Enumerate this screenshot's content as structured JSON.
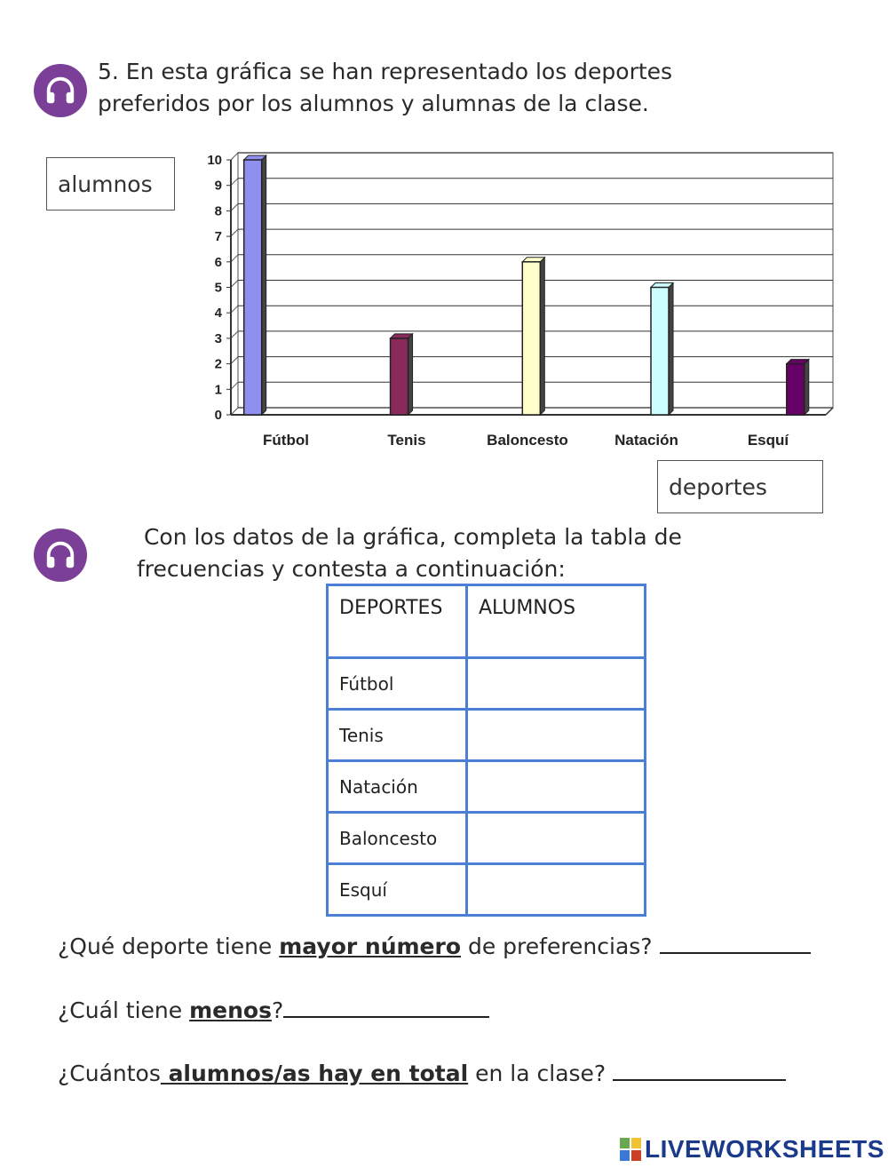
{
  "exercise": {
    "number_text": "5. En esta gráfica se han representado los deportes",
    "number_text_line2": "preferidos por los alumnos y alumnas de la clase."
  },
  "labels": {
    "y_box": "alumnos",
    "x_box": "deportes"
  },
  "instruction": {
    "line1": " Con los datos de la gráfica, completa la tabla de",
    "line2": "frecuencias y contesta a continuación:"
  },
  "table": {
    "headers": [
      "DEPORTES",
      "ALUMNOS"
    ],
    "rows": [
      "Fútbol",
      "Tenis",
      "Natación",
      "Baloncesto",
      "Esquí"
    ]
  },
  "questions": {
    "q1_pre": "¿Qué deporte tiene ",
    "q1_bold": "mayor número",
    "q1_post": " de preferencias? ",
    "q2_pre": "¿Cuál tiene ",
    "q2_bold": "menos",
    "q2_post": "?",
    "q3_pre": "¿Cuántos",
    "q3_bold": " alumnos/as hay en total",
    "q3_post": " en la clase? "
  },
  "brand": {
    "name": "LIVEWORKSHEETS"
  },
  "chart_data": {
    "type": "bar",
    "categories": [
      "Fútbol",
      "Tenis",
      "Baloncesto",
      "Natación",
      "Esquí"
    ],
    "values": [
      10,
      3,
      6,
      5,
      2
    ],
    "bar_colors": [
      "#8f8fef",
      "#8a2a5a",
      "#ffffcc",
      "#ccffff",
      "#660066"
    ],
    "title": "",
    "xlabel": "",
    "ylabel": "",
    "ylim": [
      0,
      10
    ],
    "yticks": [
      "0",
      "1",
      "2",
      "3",
      "4",
      "5",
      "6",
      "7",
      "8",
      "9",
      "10"
    ],
    "grid": true
  }
}
